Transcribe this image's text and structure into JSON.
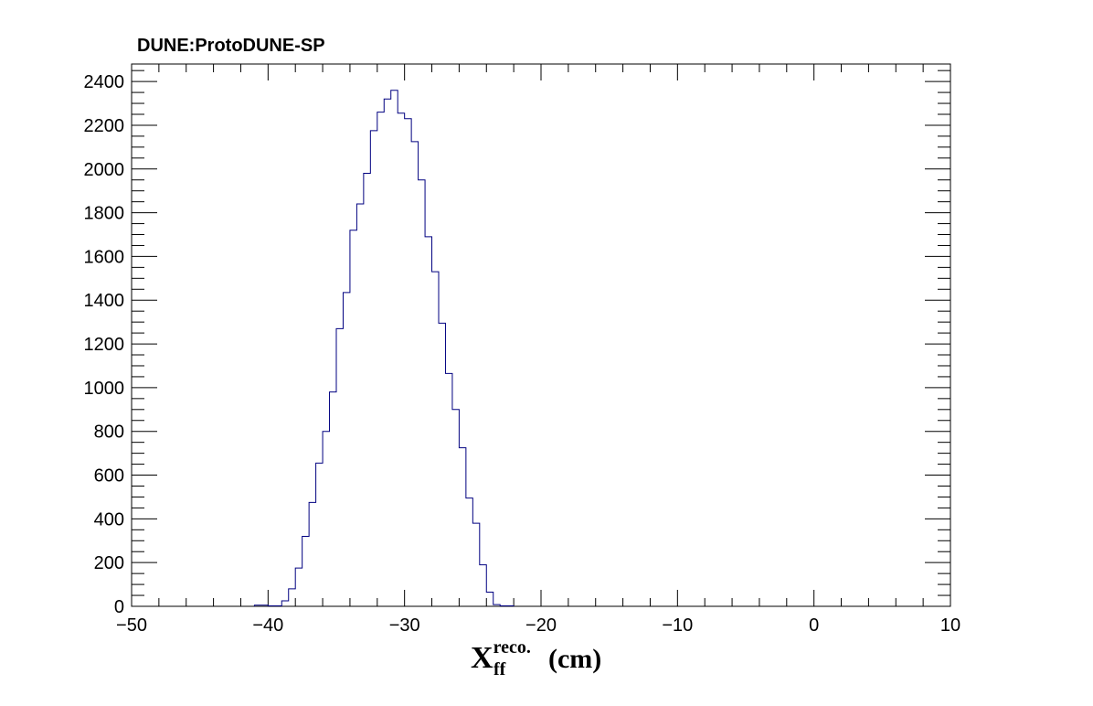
{
  "chart_data": {
    "type": "bar",
    "title": "DUNE:ProtoDUNE-SP",
    "xlabel": {
      "main": "X",
      "superscript": "reco.",
      "subscript": "ff",
      "unit": "(cm)"
    },
    "ylabel": "",
    "xlim": [
      -50,
      10
    ],
    "ylim": [
      0,
      2480
    ],
    "bin_width": 1,
    "x_ticks": [
      -50,
      -40,
      -30,
      -20,
      -10,
      0,
      10
    ],
    "x_tick_labels": [
      "−50",
      "−40",
      "−30",
      "−20",
      "−10",
      "0",
      "10"
    ],
    "y_ticks": [
      0,
      200,
      400,
      600,
      800,
      1000,
      1200,
      1400,
      1600,
      1800,
      2000,
      2200,
      2400
    ],
    "y_tick_labels": [
      "0",
      "200",
      "400",
      "600",
      "800",
      "1000",
      "1200",
      "1400",
      "1600",
      "1800",
      "2000",
      "2200",
      "2400"
    ],
    "grid": false,
    "legend": "none",
    "line_color": "#000080",
    "bins": [
      {
        "x_low": -41,
        "x_high": -40,
        "count": 5
      },
      {
        "x_low": -40,
        "x_high": -39,
        "count": 2
      },
      {
        "x_low": -39,
        "x_high": -38.5,
        "count": 25
      },
      {
        "x_low": -38.5,
        "x_high": -38,
        "count": 80
      },
      {
        "x_low": -38,
        "x_high": -37.5,
        "count": 175
      },
      {
        "x_low": -37.5,
        "x_high": -37,
        "count": 320
      },
      {
        "x_low": -37,
        "x_high": -36.5,
        "count": 475
      },
      {
        "x_low": -36.5,
        "x_high": -36,
        "count": 655
      },
      {
        "x_low": -36,
        "x_high": -35.5,
        "count": 800
      },
      {
        "x_low": -35.5,
        "x_high": -35,
        "count": 980
      },
      {
        "x_low": -35,
        "x_high": -34.5,
        "count": 1270
      },
      {
        "x_low": -34.5,
        "x_high": -34,
        "count": 1435
      },
      {
        "x_low": -34,
        "x_high": -33.5,
        "count": 1720
      },
      {
        "x_low": -33.5,
        "x_high": -33,
        "count": 1840
      },
      {
        "x_low": -33,
        "x_high": -32.5,
        "count": 1980
      },
      {
        "x_low": -32.5,
        "x_high": -32,
        "count": 2175
      },
      {
        "x_low": -32,
        "x_high": -31.5,
        "count": 2260
      },
      {
        "x_low": -31.5,
        "x_high": -31,
        "count": 2320
      },
      {
        "x_low": -31,
        "x_high": -30.5,
        "count": 2360
      },
      {
        "x_low": -30.5,
        "x_high": -30,
        "count": 2255
      },
      {
        "x_low": -30,
        "x_high": -29.5,
        "count": 2230
      },
      {
        "x_low": -29.5,
        "x_high": -29,
        "count": 2125
      },
      {
        "x_low": -29,
        "x_high": -28.5,
        "count": 1950
      },
      {
        "x_low": -28.5,
        "x_high": -28,
        "count": 1690
      },
      {
        "x_low": -28,
        "x_high": -27.5,
        "count": 1530
      },
      {
        "x_low": -27.5,
        "x_high": -27,
        "count": 1295
      },
      {
        "x_low": -27,
        "x_high": -26.5,
        "count": 1065
      },
      {
        "x_low": -26.5,
        "x_high": -26,
        "count": 900
      },
      {
        "x_low": -26,
        "x_high": -25.5,
        "count": 725
      },
      {
        "x_low": -25.5,
        "x_high": -25,
        "count": 495
      },
      {
        "x_low": -25,
        "x_high": -24.5,
        "count": 380
      },
      {
        "x_low": -24.5,
        "x_high": -24,
        "count": 190
      },
      {
        "x_low": -24,
        "x_high": -23.5,
        "count": 65
      },
      {
        "x_low": -23.5,
        "x_high": -23,
        "count": 8
      },
      {
        "x_low": -23,
        "x_high": -22,
        "count": 2
      }
    ]
  }
}
